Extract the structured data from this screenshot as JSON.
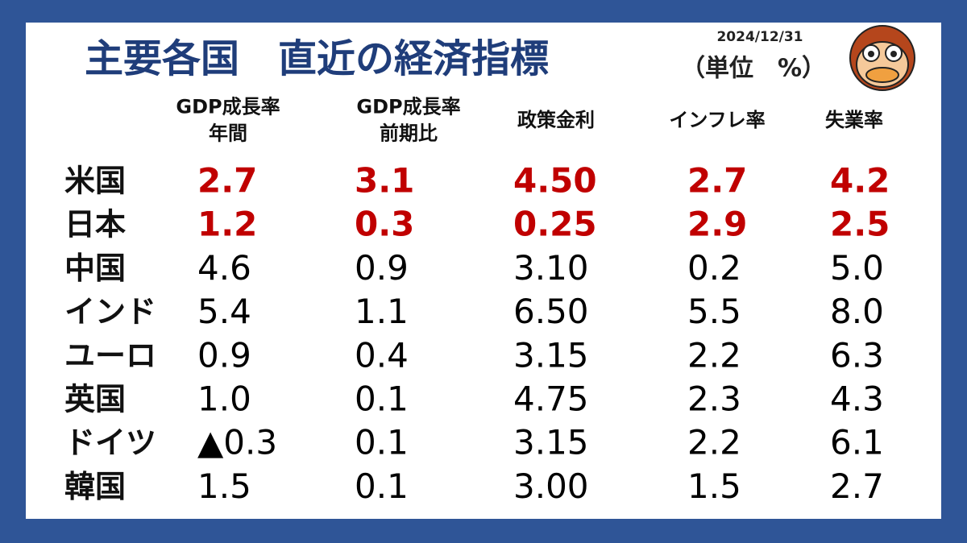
{
  "header": {
    "title": "主要各国　直近の経済指標",
    "date": "2024/12/31",
    "unit": "（単位　%）"
  },
  "table": {
    "columns": [
      [
        "GDP成長率",
        "年間"
      ],
      [
        "GDP成長率",
        "前期比"
      ],
      [
        "政策金利"
      ],
      [
        "インフレ率"
      ],
      [
        "失業率"
      ]
    ],
    "rows": [
      {
        "country": "米国",
        "color": "#c00000",
        "bold": true,
        "values": [
          "2.7",
          "3.1",
          "4.50",
          "2.7",
          "4.2"
        ]
      },
      {
        "country": "日本",
        "color": "#c00000",
        "bold": true,
        "values": [
          "1.2",
          "0.3",
          "0.25",
          "2.9",
          "2.5"
        ]
      },
      {
        "country": "中国",
        "color": "#000000",
        "bold": false,
        "values": [
          "4.6",
          "0.9",
          "3.10",
          "0.2",
          "5.0"
        ]
      },
      {
        "country": "インド",
        "color": "#000000",
        "bold": false,
        "values": [
          "5.4",
          "1.1",
          "6.50",
          "5.5",
          "8.0"
        ]
      },
      {
        "country": "ユーロ",
        "color": "#000000",
        "bold": false,
        "values": [
          "0.9",
          "0.4",
          "3.15",
          "2.2",
          "6.3"
        ]
      },
      {
        "country": "英国",
        "color": "#000000",
        "bold": false,
        "values": [
          "1.0",
          "0.1",
          "4.75",
          "2.3",
          "4.3"
        ]
      },
      {
        "country": "ドイツ",
        "color": "#000000",
        "bold": false,
        "values": [
          "▲0.3",
          "0.1",
          "3.15",
          "2.2",
          "6.1"
        ]
      },
      {
        "country": "韓国",
        "color": "#000000",
        "bold": false,
        "values": [
          "1.5",
          "0.1",
          "3.00",
          "1.5",
          "2.7"
        ]
      }
    ]
  }
}
